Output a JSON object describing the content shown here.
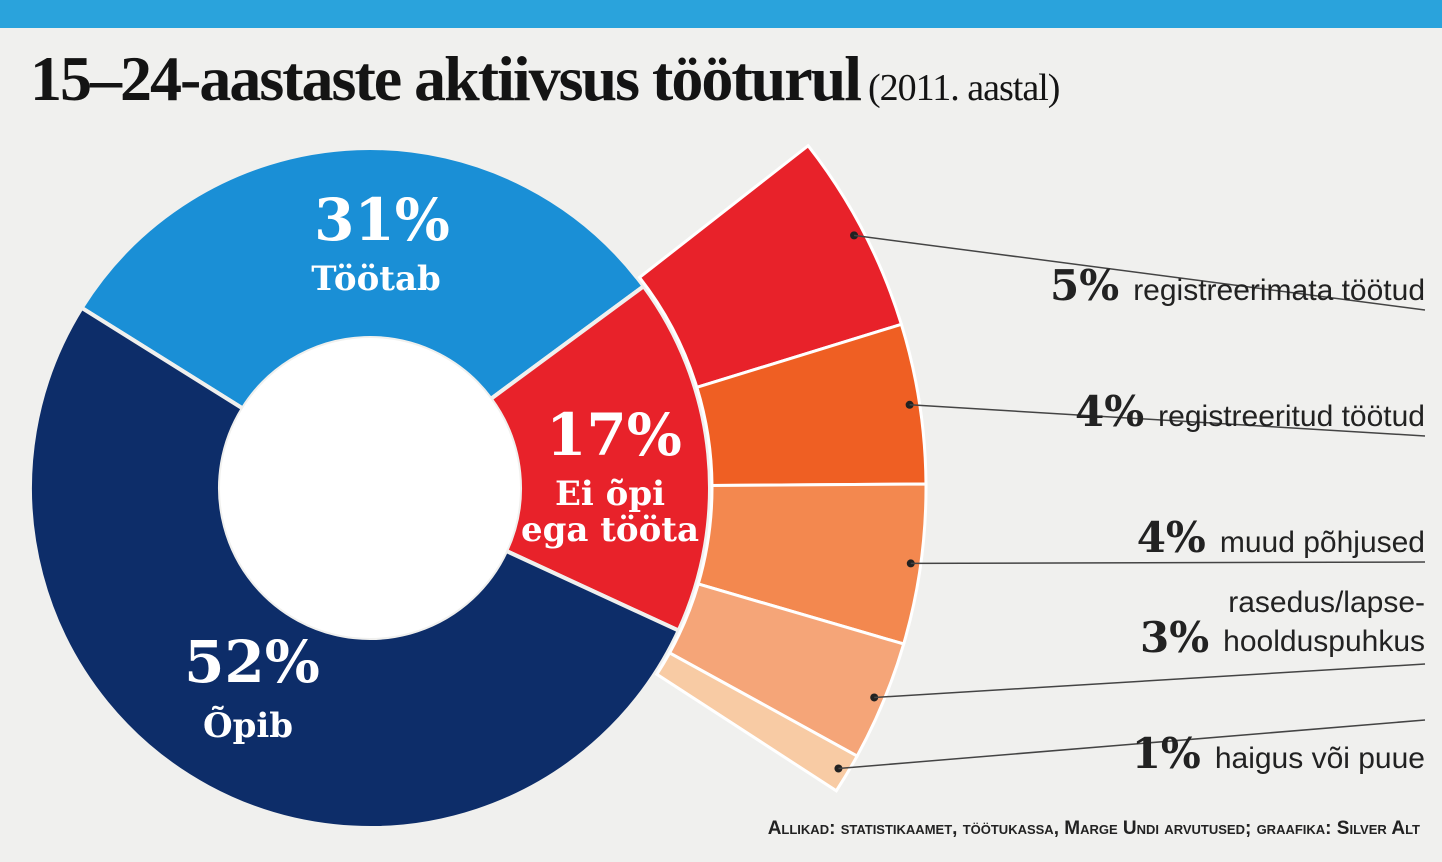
{
  "title": "15–24-aastaste aktiivsus tööturul",
  "subtitle": "(2011. aastal)",
  "source": "Allikad: statistikaamet, töötukassa, Marge Undi arvutused; graafika: Silver Alt",
  "chart_data": [
    {
      "type": "pie",
      "variant": "donut",
      "slices": [
        {
          "label": "Töötab",
          "value": 31,
          "value_label": "31%",
          "color": "#1a8fd6"
        },
        {
          "label": "Ei õpi ega tööta",
          "value": 17,
          "value_label": "17%",
          "color": "#e8222a"
        },
        {
          "label": "Õpib",
          "value": 52,
          "value_label": "52%",
          "color": "#0d2d69"
        }
      ]
    },
    {
      "type": "bar",
      "variant": "breakdown of 'Ei õpi ega tööta'",
      "slices": [
        {
          "label": "registreerimata töötud",
          "value": 5,
          "value_label": "5%",
          "color": "#e8222a"
        },
        {
          "label": "registreeritud töötud",
          "value": 4,
          "value_label": "4%",
          "color": "#ef5f23"
        },
        {
          "label": "muud põhjused",
          "value": 4,
          "value_label": "4%",
          "color": "#f3884f"
        },
        {
          "label": "rasedus/lapsehoolduspuhkus",
          "label_lines": [
            "rasedus/lapse-",
            "hoolduspuhkus"
          ],
          "value": 3,
          "value_label": "3%",
          "color": "#f5a578"
        },
        {
          "label": "haigus või puue",
          "value": 1,
          "value_label": "1%",
          "color": "#f8cba4"
        }
      ]
    }
  ]
}
